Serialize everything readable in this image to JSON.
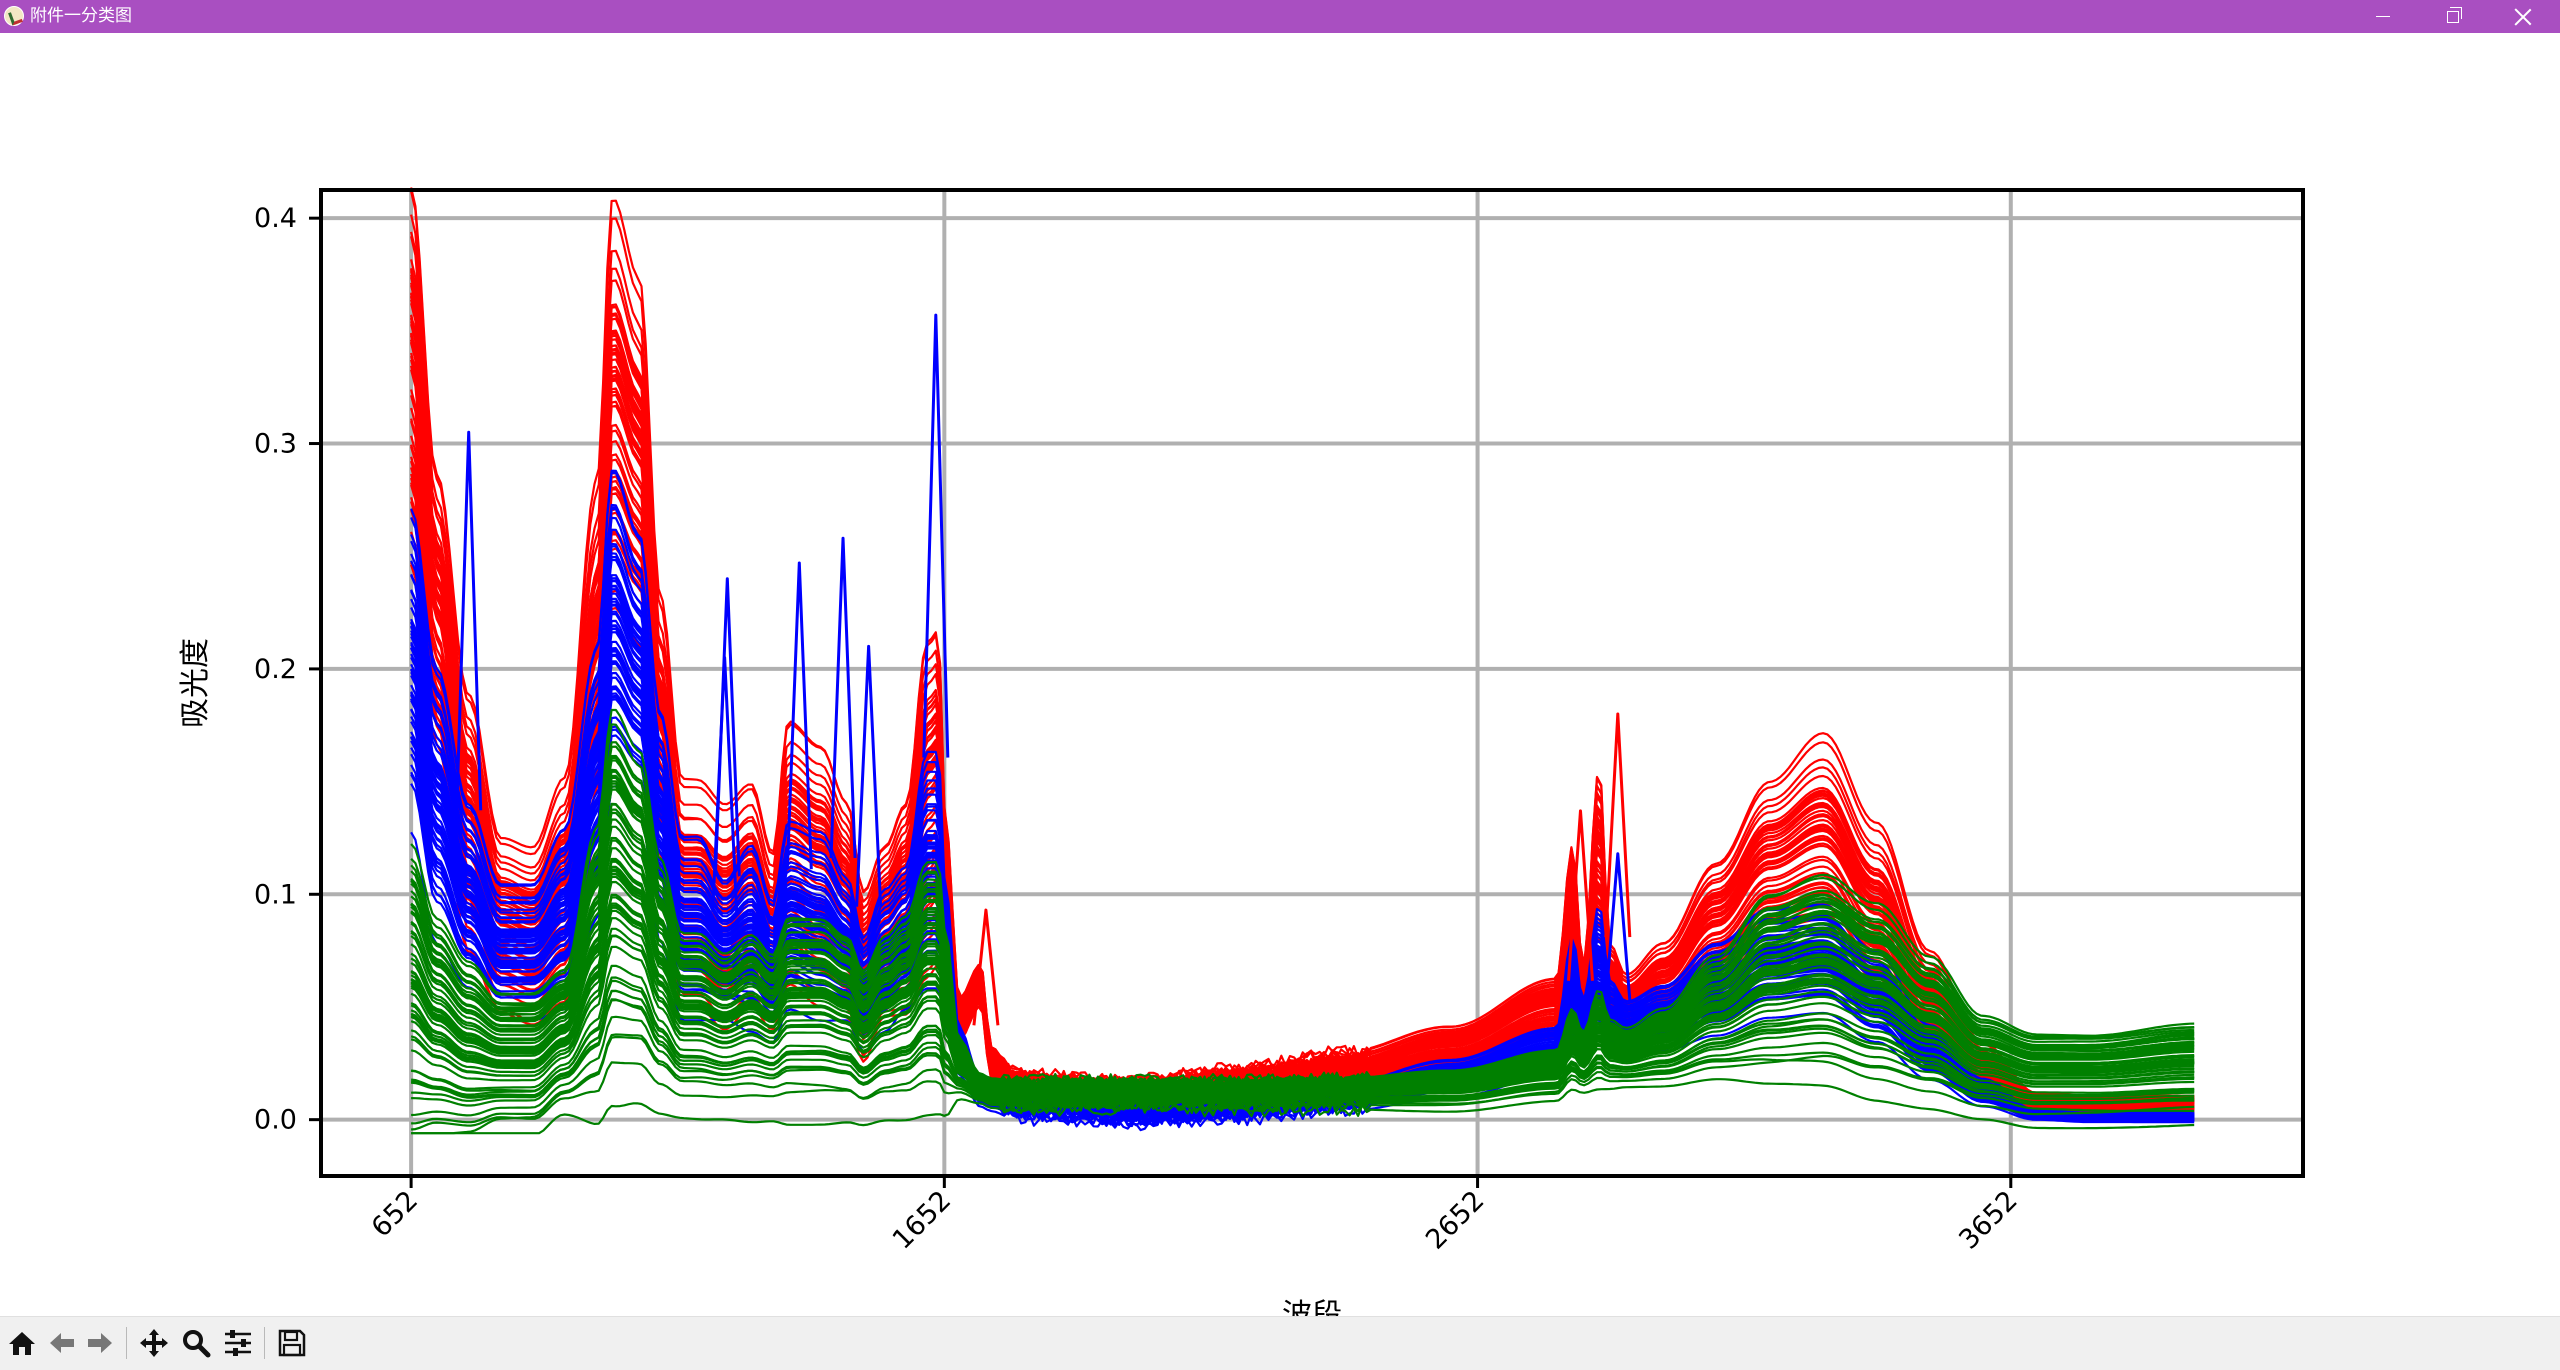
{
  "window": {
    "title": "附件一分类图",
    "icon": "app-logo-icon",
    "controls": [
      "minimize-icon",
      "restore-icon",
      "close-icon"
    ]
  },
  "toolbar": {
    "buttons": [
      {
        "name": "home-icon",
        "tooltip": "Home"
      },
      {
        "name": "back-arrow-icon",
        "tooltip": "Back"
      },
      {
        "name": "forward-arrow-icon",
        "tooltip": "Forward"
      },
      {
        "name": "pan-move-icon",
        "tooltip": "Pan"
      },
      {
        "name": "zoom-magnifier-icon",
        "tooltip": "Zoom"
      },
      {
        "name": "configure-subplots-icon",
        "tooltip": "Subplots"
      },
      {
        "name": "save-floppy-icon",
        "tooltip": "Save"
      }
    ]
  },
  "chart_data": {
    "type": "line",
    "title": "",
    "xlabel": "波段",
    "ylabel": "吸光度",
    "xlim": [
      483,
      4200
    ],
    "ylim": [
      -0.025,
      0.4125
    ],
    "x_ticks": [
      652,
      1652,
      2652,
      3652
    ],
    "x_tick_labels": [
      "652",
      "1652",
      "2652",
      "3652"
    ],
    "y_ticks": [
      0.0,
      0.1,
      0.2,
      0.3,
      0.4
    ],
    "y_tick_labels": [
      "0.0",
      "0.1",
      "0.2",
      "0.3",
      "0.4"
    ],
    "x_tick_rotation": 45,
    "grid": true,
    "legend": "none",
    "x_range": [
      652,
      4000
    ],
    "series": [
      {
        "color": "#ff0000",
        "curves": 60,
        "profile": {
          "x": [
            652,
            700,
            760,
            820,
            880,
            940,
            1000,
            1030,
            1080,
            1120,
            1160,
            1190,
            1240,
            1290,
            1330,
            1360,
            1420,
            1470,
            1500,
            1540,
            1580,
            1620,
            1640,
            1655,
            1680,
            1720,
            1740,
            1780,
            1860,
            2000,
            2200,
            2400,
            2600,
            2800,
            2830,
            2850,
            2880,
            2900,
            2930,
            3000,
            3100,
            3200,
            3300,
            3400,
            3500,
            3600,
            3700,
            3800,
            4000
          ],
          "y": [
            0.33,
            0.22,
            0.13,
            0.085,
            0.08,
            0.1,
            0.2,
            0.315,
            0.29,
            0.17,
            0.1,
            0.1,
            0.09,
            0.1,
            0.08,
            0.12,
            0.11,
            0.095,
            0.065,
            0.085,
            0.095,
            0.14,
            0.145,
            0.095,
            0.045,
            0.06,
            0.025,
            0.016,
            0.014,
            0.012,
            0.017,
            0.022,
            0.032,
            0.05,
            0.1,
            0.055,
            0.12,
            0.06,
            0.05,
            0.06,
            0.085,
            0.11,
            0.12,
            0.09,
            0.05,
            0.022,
            0.008,
            0.007,
            0.007
          ],
          "spread": [
            0.045,
            0.035,
            0.03,
            0.02,
            0.02,
            0.025,
            0.04,
            0.045,
            0.04,
            0.03,
            0.025,
            0.025,
            0.025,
            0.025,
            0.02,
            0.03,
            0.03,
            0.025,
            0.02,
            0.02,
            0.025,
            0.04,
            0.04,
            0.02,
            0.005,
            0.005,
            0.004,
            0.003,
            0.003,
            0.003,
            0.003,
            0.004,
            0.005,
            0.007,
            0.012,
            0.007,
            0.02,
            0.01,
            0.008,
            0.01,
            0.015,
            0.02,
            0.025,
            0.02,
            0.012,
            0.006,
            0.002,
            0.002,
            0.002
          ]
        }
      },
      {
        "color": "#0000ff",
        "curves": 55,
        "profile": {
          "x": [
            652,
            700,
            760,
            820,
            880,
            940,
            1000,
            1030,
            1080,
            1120,
            1160,
            1190,
            1240,
            1290,
            1330,
            1360,
            1420,
            1470,
            1500,
            1540,
            1580,
            1620,
            1640,
            1655,
            1680,
            1720,
            1740,
            1780,
            1860,
            2000,
            2200,
            2400,
            2600,
            2800,
            2830,
            2850,
            2880,
            2900,
            2930,
            3000,
            3100,
            3200,
            3300,
            3400,
            3500,
            3600,
            3700,
            3800,
            4000
          ],
          "y": [
            0.2,
            0.14,
            0.1,
            0.075,
            0.075,
            0.09,
            0.15,
            0.22,
            0.2,
            0.13,
            0.085,
            0.085,
            0.075,
            0.08,
            0.065,
            0.09,
            0.085,
            0.075,
            0.055,
            0.07,
            0.08,
            0.11,
            0.11,
            0.07,
            0.03,
            0.012,
            0.01,
            0.007,
            0.006,
            0.004,
            0.006,
            0.01,
            0.018,
            0.03,
            0.06,
            0.04,
            0.07,
            0.045,
            0.04,
            0.045,
            0.058,
            0.07,
            0.072,
            0.055,
            0.03,
            0.012,
            0.002,
            0.001,
            0.001
          ],
          "spread": [
            0.035,
            0.03,
            0.02,
            0.015,
            0.015,
            0.02,
            0.03,
            0.035,
            0.03,
            0.025,
            0.02,
            0.02,
            0.015,
            0.02,
            0.015,
            0.02,
            0.02,
            0.015,
            0.012,
            0.015,
            0.015,
            0.025,
            0.025,
            0.015,
            0.005,
            0.003,
            0.003,
            0.003,
            0.003,
            0.003,
            0.003,
            0.003,
            0.004,
            0.005,
            0.01,
            0.006,
            0.012,
            0.008,
            0.006,
            0.007,
            0.01,
            0.012,
            0.012,
            0.01,
            0.006,
            0.003,
            0.001,
            0.001,
            0.001
          ]
        }
      },
      {
        "color": "#008000",
        "curves": 60,
        "profile": {
          "x": [
            652,
            700,
            760,
            820,
            880,
            940,
            1000,
            1030,
            1080,
            1120,
            1160,
            1190,
            1240,
            1290,
            1330,
            1360,
            1420,
            1470,
            1500,
            1540,
            1580,
            1620,
            1640,
            1655,
            1680,
            1720,
            1740,
            1780,
            1860,
            2000,
            2200,
            2400,
            2600,
            2800,
            2830,
            2850,
            2880,
            2900,
            2930,
            3000,
            3100,
            3200,
            3300,
            3400,
            3500,
            3600,
            3700,
            3800,
            4000
          ],
          "y": [
            0.06,
            0.045,
            0.035,
            0.03,
            0.03,
            0.04,
            0.075,
            0.11,
            0.1,
            0.07,
            0.05,
            0.05,
            0.045,
            0.05,
            0.045,
            0.055,
            0.055,
            0.05,
            0.04,
            0.05,
            0.055,
            0.07,
            0.07,
            0.05,
            0.025,
            0.015,
            0.013,
            0.012,
            0.012,
            0.012,
            0.012,
            0.013,
            0.015,
            0.022,
            0.035,
            0.028,
            0.04,
            0.032,
            0.03,
            0.035,
            0.05,
            0.065,
            0.07,
            0.06,
            0.045,
            0.028,
            0.022,
            0.022,
            0.025
          ],
          "spread": [
            0.035,
            0.025,
            0.02,
            0.015,
            0.015,
            0.015,
            0.03,
            0.04,
            0.035,
            0.025,
            0.018,
            0.018,
            0.016,
            0.018,
            0.016,
            0.02,
            0.02,
            0.018,
            0.015,
            0.018,
            0.02,
            0.025,
            0.025,
            0.018,
            0.006,
            0.003,
            0.003,
            0.003,
            0.003,
            0.003,
            0.003,
            0.003,
            0.004,
            0.005,
            0.008,
            0.006,
            0.01,
            0.007,
            0.006,
            0.008,
            0.013,
            0.02,
            0.022,
            0.02,
            0.015,
            0.01,
            0.009,
            0.009,
            0.01
          ]
        }
      }
    ],
    "spikes": [
      {
        "x": 760,
        "y": 0.305,
        "color": "#0000ff"
      },
      {
        "x": 1240,
        "y": 0.205,
        "color": "#0000ff"
      },
      {
        "x": 1245,
        "y": 0.24,
        "color": "#0000ff"
      },
      {
        "x": 1380,
        "y": 0.247,
        "color": "#0000ff"
      },
      {
        "x": 1462,
        "y": 0.258,
        "color": "#0000ff"
      },
      {
        "x": 1510,
        "y": 0.21,
        "color": "#0000ff"
      },
      {
        "x": 1636,
        "y": 0.357,
        "color": "#0000ff"
      },
      {
        "x": 1730,
        "y": 0.093,
        "color": "#ff0000"
      },
      {
        "x": 2845,
        "y": 0.137,
        "color": "#ff0000"
      },
      {
        "x": 2915,
        "y": 0.18,
        "color": "#ff0000"
      },
      {
        "x": 2915,
        "y": 0.118,
        "color": "#0000ff"
      }
    ]
  }
}
